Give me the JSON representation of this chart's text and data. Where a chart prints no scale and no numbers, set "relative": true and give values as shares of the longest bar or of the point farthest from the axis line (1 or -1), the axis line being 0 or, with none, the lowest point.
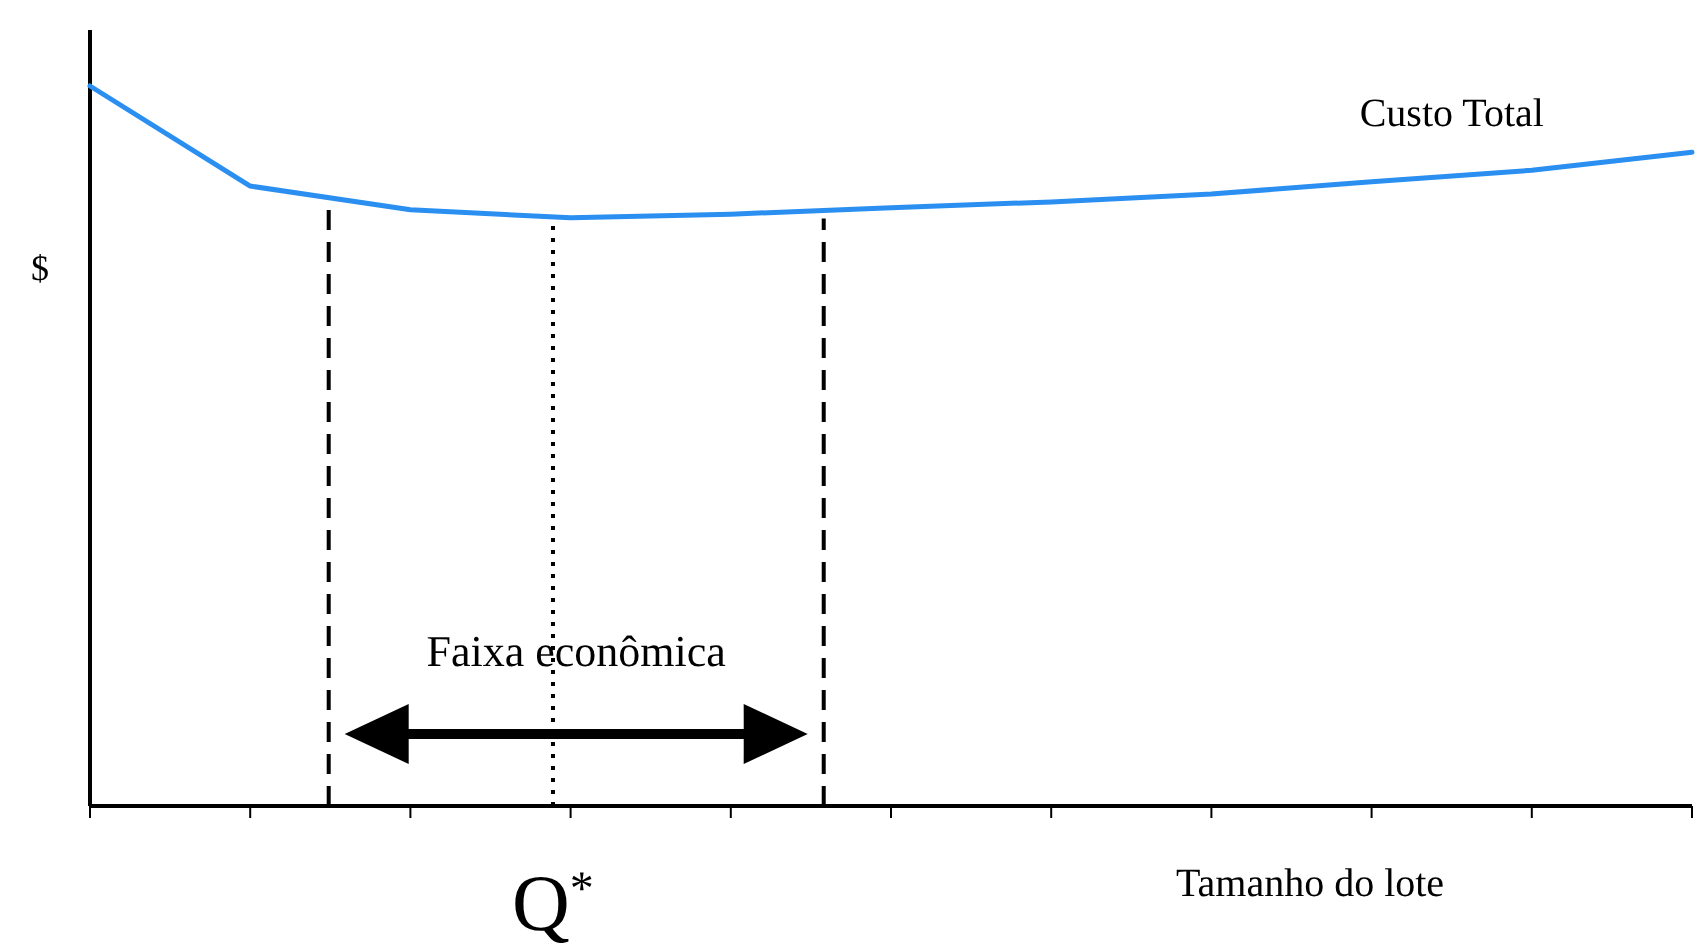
{
  "chart_data": {
    "type": "line",
    "relative": true,
    "xlabel": "Tamanho do lote",
    "ylabel": "$",
    "categories": [
      null,
      null,
      null,
      null,
      null,
      null,
      null,
      null,
      null,
      null,
      null
    ],
    "series": [
      {
        "name": "Custo Total",
        "color": "#2a8ff0",
        "values": [
          1,
          0.861,
          0.828,
          0.817,
          0.822,
          0.831,
          0.839,
          0.85,
          0.867,
          0.883,
          0.908
        ]
      }
    ],
    "annotations": [
      "Faixa econômica",
      "Q$^{*}$"
    ],
    "marker": "none",
    "line_style": "solid"
  }
}
